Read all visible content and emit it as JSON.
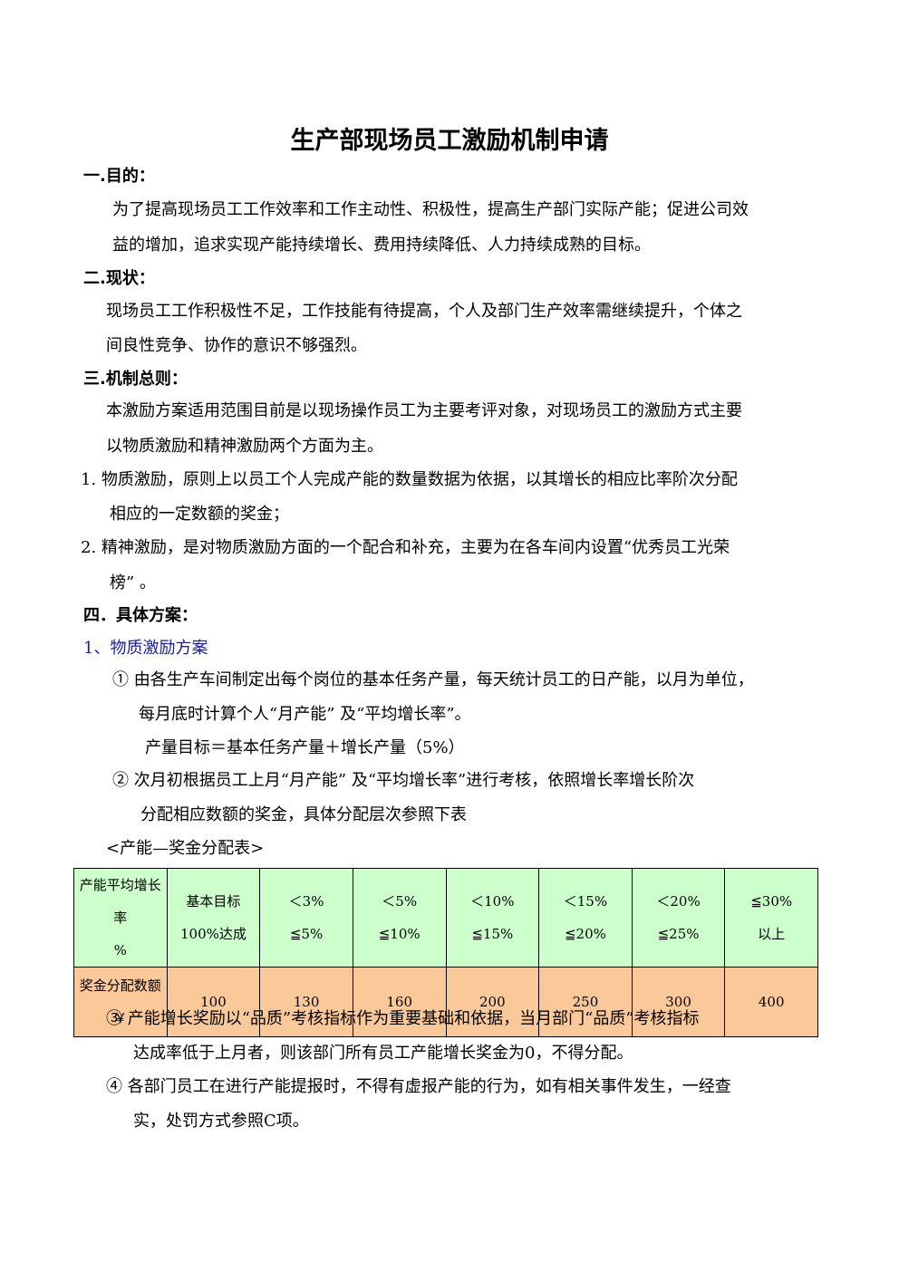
{
  "title": "生产部现场员工激励机制申请",
  "s1": {
    "heading": "一.目的：",
    "lines": [
      "为了提高现场员工工作效率和工作主动性、积极性，提高生产部门实际产能；促进公司效",
      "益的增加，追求实现产能持续增长、费用持续降低、人力持续成熟的目标。"
    ]
  },
  "s2": {
    "heading": "二.现状：",
    "lines": [
      "现场员工工作积极性不足，工作技能有待提高，个人及部门生产效率需继续提升，个体之",
      "间良性竞争、协作的意识不够强烈。"
    ]
  },
  "s3": {
    "heading": "三.机制总则：",
    "lines": [
      "本激励方案适用范围目前是以现场操作员工为主要考评对象，对现场员工的激励方式主要",
      "以物质激励和精神激励两个方面为主。"
    ],
    "item1": [
      "1.  物质激励，原则上以员工个人完成产能的数量数据为依据，以其增长的相应比率阶次分配",
      "相应的一定数额的奖金；"
    ],
    "item2": [
      "2.  精神激励，是对物质激励方面的一个配合和补充，主要为在各车间内设置“优秀员工光荣",
      "榜” 。"
    ]
  },
  "s4": {
    "heading": "四．具体方案：",
    "sub1": "1、物质激励方案",
    "p1": [
      "①  由各生产车间制定出每个岗位的基本任务产量，每天统计员工的日产能，以月为单位，",
      "每月底时计算个人“月产能” 及“平均增长率”。",
      "产量目标＝基本任务产量＋增长产量（5%）"
    ],
    "p2": [
      "②  次月初根据员工上月“月产能” 及“平均增长率”进行考核，依照增长率增长阶次",
      "分配相应数额的奖金，具体分配层次参照下表"
    ],
    "table_caption": "<产能—奖金分配表>",
    "p3": [
      "③  产能增长奖励以“品质”考核指标作为重要基础和依据，当月部门“品质”考核指标",
      "达成率低于上月者，则该部门所有员工产能增长奖金为0，不得分配。"
    ],
    "p4": [
      "④  各部门员工在进行产能提报时，不得有虚报产能的行为，如有相关事件发生，一经查",
      "实，处罚方式参照C项。"
    ]
  },
  "table": {
    "header": [
      [
        "产能平均增长率",
        "%"
      ],
      [
        "基本目标",
        "100%达成"
      ],
      [
        "＜3%",
        "≦5%"
      ],
      [
        "＜5%",
        "≦10%"
      ],
      [
        "＜10%",
        "≦15%"
      ],
      [
        "＜15%",
        "≦20%"
      ],
      [
        "＜20%",
        "≦25%"
      ],
      [
        "≦30%",
        "以上"
      ]
    ],
    "row_label": "奖金分配数额￥",
    "row_values": [
      "100",
      "130",
      "160",
      "200",
      "250",
      "300",
      "400"
    ]
  },
  "colors": {
    "header_bg": "#ccffcc",
    "value_bg": "#fbc89a",
    "subheading": "#1a1aa8"
  }
}
